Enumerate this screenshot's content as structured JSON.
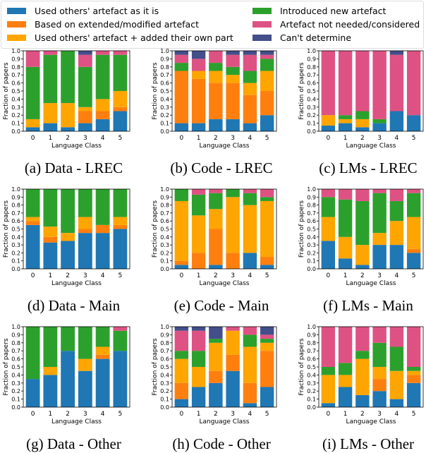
{
  "legend": [
    {
      "label": "Used others' artefact as it is",
      "color": "#1f77b4"
    },
    {
      "label": "Based on extended/modified artefact",
      "color": "#ff7f0e"
    },
    {
      "label": "Used others' artefact + added their own part",
      "color": "#ffa500"
    },
    {
      "label": "Introduced new artefact",
      "color": "#2ca02c"
    },
    {
      "label": "Artefact not needed/considered",
      "color": "#de5283"
    },
    {
      "label": "Can't determine",
      "color": "#434e8a"
    }
  ],
  "chart_data": [
    {
      "type": "bar",
      "stacked": true,
      "caption": "(a) Data - LREC",
      "xlabel": "Language Class",
      "ylabel": "Fraction of papers",
      "ylim": [
        0,
        1
      ],
      "categories": [
        "0",
        "1",
        "2",
        "3",
        "4",
        "5"
      ],
      "values": [
        [
          0.05,
          0,
          0.1,
          0.65,
          0.2,
          0
        ],
        [
          0.1,
          0,
          0.25,
          0.6,
          0.05,
          0
        ],
        [
          0.05,
          0,
          0.3,
          0.65,
          0,
          0
        ],
        [
          0.1,
          0.15,
          0.05,
          0.5,
          0.15,
          0.05
        ],
        [
          0.15,
          0.1,
          0.15,
          0.55,
          0.05,
          0
        ],
        [
          0.25,
          0.05,
          0.2,
          0.45,
          0.05,
          0
        ]
      ]
    },
    {
      "type": "bar",
      "stacked": true,
      "caption": "(b) Code - LREC",
      "xlabel": "Language Class",
      "ylabel": "Fraction of papers",
      "ylim": [
        0,
        1
      ],
      "categories": [
        "0",
        "1",
        "2",
        "3",
        "4",
        "5"
      ],
      "values": [
        [
          0.1,
          0.65,
          0,
          0.1,
          0.1,
          0.05
        ],
        [
          0.1,
          0.55,
          0.1,
          0,
          0.15,
          0.1
        ],
        [
          0.15,
          0.45,
          0.15,
          0.1,
          0.15,
          0
        ],
        [
          0.15,
          0.45,
          0.1,
          0.1,
          0.15,
          0.05
        ],
        [
          0.1,
          0.35,
          0.15,
          0.15,
          0.2,
          0.05
        ],
        [
          0.2,
          0.3,
          0.25,
          0.15,
          0.05,
          0.05
        ]
      ]
    },
    {
      "type": "bar",
      "stacked": true,
      "caption": "(c) LMs - LREC",
      "xlabel": "Language Class",
      "ylabel": "Fraction of papers",
      "ylim": [
        0,
        1
      ],
      "categories": [
        "0",
        "1",
        "2",
        "3",
        "4",
        "5"
      ],
      "values": [
        [
          0.07,
          0,
          0.13,
          0,
          0.8,
          0
        ],
        [
          0.1,
          0,
          0.05,
          0.05,
          0.8,
          0
        ],
        [
          0.05,
          0,
          0.1,
          0.1,
          0.75,
          0
        ],
        [
          0.1,
          0,
          0,
          0.05,
          0.85,
          0
        ],
        [
          0.25,
          0,
          0,
          0,
          0.7,
          0.05
        ],
        [
          0.2,
          0,
          0,
          0,
          0.8,
          0
        ]
      ]
    },
    {
      "type": "bar",
      "stacked": true,
      "caption": "(d) Data - Main",
      "xlabel": "Language Class",
      "ylabel": "Fraction of papers",
      "ylim": [
        0,
        1
      ],
      "categories": [
        "0",
        "1",
        "2",
        "3",
        "4",
        "5"
      ],
      "values": [
        [
          0.55,
          0.05,
          0.05,
          0.35,
          0,
          0
        ],
        [
          0.33,
          0.07,
          0.13,
          0.47,
          0,
          0
        ],
        [
          0.35,
          0,
          0.1,
          0.55,
          0,
          0
        ],
        [
          0.45,
          0.05,
          0.15,
          0.35,
          0,
          0
        ],
        [
          0.45,
          0.1,
          0,
          0.45,
          0,
          0
        ],
        [
          0.5,
          0.05,
          0.1,
          0.35,
          0,
          0
        ]
      ]
    },
    {
      "type": "bar",
      "stacked": true,
      "caption": "(e) Code - Main",
      "xlabel": "Language Class",
      "ylabel": "Fraction of papers",
      "ylim": [
        0,
        1
      ],
      "categories": [
        "0",
        "1",
        "2",
        "3",
        "4",
        "5"
      ],
      "values": [
        [
          0.05,
          0.05,
          0.75,
          0.15,
          0,
          0
        ],
        [
          0,
          0.2,
          0.47,
          0.26,
          0.07,
          0
        ],
        [
          0.05,
          0.45,
          0.25,
          0.2,
          0.05,
          0
        ],
        [
          0,
          0.2,
          0.7,
          0.1,
          0,
          0
        ],
        [
          0.2,
          0,
          0.6,
          0.15,
          0.05,
          0
        ],
        [
          0.05,
          0.1,
          0.7,
          0.05,
          0.1,
          0
        ]
      ]
    },
    {
      "type": "bar",
      "stacked": true,
      "caption": "(f) LMs - Main",
      "xlabel": "Language Class",
      "ylabel": "Fraction of papers",
      "ylim": [
        0,
        1
      ],
      "categories": [
        "0",
        "1",
        "2",
        "3",
        "4",
        "5"
      ],
      "values": [
        [
          0.35,
          0,
          0.3,
          0.25,
          0.1,
          0
        ],
        [
          0.13,
          0,
          0.27,
          0.47,
          0.13,
          0
        ],
        [
          0.05,
          0,
          0.25,
          0.55,
          0.15,
          0
        ],
        [
          0.3,
          0,
          0.15,
          0.5,
          0.05,
          0
        ],
        [
          0.3,
          0,
          0.3,
          0.25,
          0.15,
          0
        ],
        [
          0.2,
          0.05,
          0.4,
          0.3,
          0.05,
          0
        ]
      ]
    },
    {
      "type": "bar",
      "stacked": true,
      "caption": "(g) Data - Other",
      "xlabel": "Language Class",
      "ylabel": "Fraction of papers",
      "ylim": [
        0,
        1
      ],
      "categories": [
        "0",
        "1",
        "2",
        "3",
        "4",
        "5"
      ],
      "values": [
        [
          0.35,
          0,
          0,
          0.65,
          0,
          0
        ],
        [
          0.4,
          0,
          0.1,
          0.5,
          0,
          0
        ],
        [
          0.7,
          0,
          0,
          0.3,
          0,
          0
        ],
        [
          0.45,
          0,
          0.15,
          0.4,
          0,
          0
        ],
        [
          0.6,
          0.05,
          0.1,
          0.25,
          0,
          0
        ],
        [
          0.7,
          0,
          0,
          0.25,
          0.05,
          0
        ]
      ]
    },
    {
      "type": "bar",
      "stacked": true,
      "caption": "(h) Code - Other",
      "xlabel": "Language Class",
      "ylabel": "Fraction of papers",
      "ylim": [
        0,
        1
      ],
      "categories": [
        "0",
        "1",
        "2",
        "3",
        "4",
        "5"
      ],
      "values": [
        [
          0.1,
          0.2,
          0.3,
          0.1,
          0.25,
          0.05
        ],
        [
          0.25,
          0,
          0.25,
          0.2,
          0.25,
          0.05
        ],
        [
          0.3,
          0.15,
          0.35,
          0.05,
          0,
          0.15
        ],
        [
          0.45,
          0.2,
          0.3,
          0,
          0.05,
          0
        ],
        [
          0.05,
          0.25,
          0.45,
          0.15,
          0.1,
          0
        ],
        [
          0.25,
          0.45,
          0.1,
          0.05,
          0.05,
          0.1
        ]
      ]
    },
    {
      "type": "bar",
      "stacked": true,
      "caption": "(i) LMs - Other",
      "xlabel": "Language Class",
      "ylabel": "Fraction of papers",
      "ylim": [
        0,
        1
      ],
      "categories": [
        "0",
        "1",
        "2",
        "3",
        "4",
        "5"
      ],
      "values": [
        [
          0.05,
          0,
          0.35,
          0.1,
          0.5,
          0
        ],
        [
          0.25,
          0,
          0.15,
          0.15,
          0.45,
          0
        ],
        [
          0.15,
          0,
          0.45,
          0.1,
          0.3,
          0
        ],
        [
          0.2,
          0.15,
          0.15,
          0.3,
          0.2,
          0
        ],
        [
          0.1,
          0,
          0.35,
          0.3,
          0.25,
          0
        ],
        [
          0.3,
          0.1,
          0.05,
          0.05,
          0.5,
          0
        ]
      ]
    }
  ],
  "yticks": [
    "0.0",
    "0.1",
    "0.2",
    "0.3",
    "0.4",
    "0.5",
    "0.6",
    "0.7",
    "0.8",
    "0.9",
    "1.0"
  ]
}
